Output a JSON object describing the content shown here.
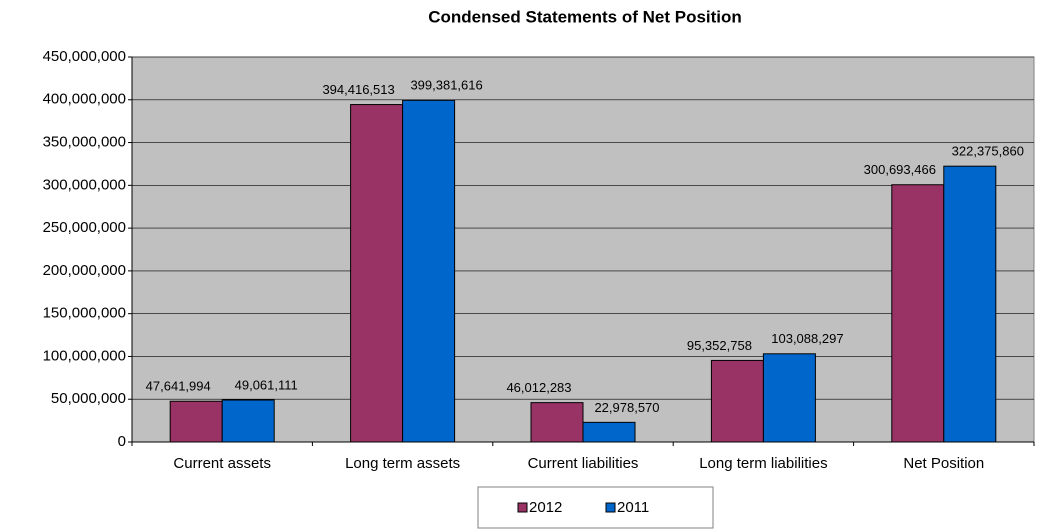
{
  "chart_data": {
    "type": "bar",
    "title": "Condensed Statements of Net Position",
    "categories": [
      "Current assets",
      "Long term assets",
      "Current liabilities",
      "Long term liabilities",
      "Net Position"
    ],
    "series": [
      {
        "name": "2012",
        "color": "#993366",
        "values": [
          47641994,
          394416513,
          46012283,
          95352758,
          300693466
        ],
        "value_labels": [
          "47,641,994",
          "394,416,513",
          "46,012,283",
          "95,352,758",
          "300,693,466"
        ]
      },
      {
        "name": "2011",
        "color": "#0066cc",
        "values": [
          49061111,
          399381616,
          22978570,
          103088297,
          322375860
        ],
        "value_labels": [
          "49,061,111",
          "399,381,616",
          "22,978,570",
          "103,088,297",
          "322,375,860"
        ]
      }
    ],
    "ylim": [
      0,
      450000000
    ],
    "yticks": [
      0,
      {
        "value": 50000000,
        "label": "50,000,000"
      },
      {
        "value": 100000000,
        "label": "100,000,000"
      },
      {
        "value": 150000000,
        "label": "150,000,000"
      },
      {
        "value": 200000000,
        "label": "200,000,000"
      },
      {
        "value": 250000000,
        "label": "250,000,000"
      },
      {
        "value": 300000000,
        "label": "300,000,000"
      },
      {
        "value": 350000000,
        "label": "350,000,000"
      },
      {
        "value": 400000000,
        "label": "400,000,000"
      },
      {
        "value": 450000000,
        "label": "450,000,000"
      }
    ],
    "grid": true,
    "legend": "bottom",
    "plot_background": "#c0c0c0"
  }
}
